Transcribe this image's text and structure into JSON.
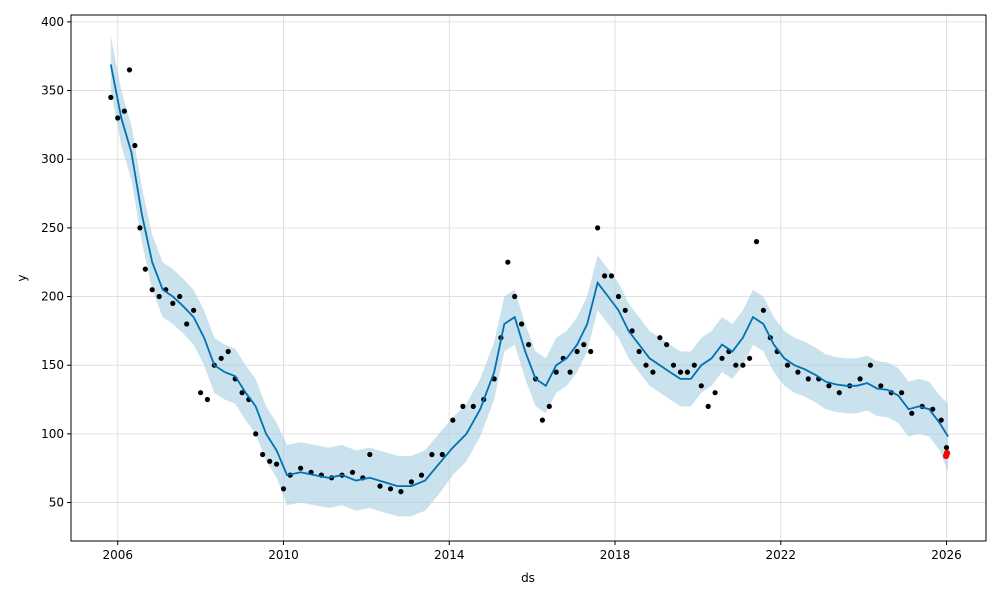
{
  "chart_data": {
    "type": "line",
    "xlabel": "ds",
    "ylabel": "y",
    "x_axis": {
      "type": "date",
      "range": [
        "2004-11-15",
        "2026-12-15"
      ],
      "tick_labels": [
        "2006",
        "2010",
        "2014",
        "2018",
        "2022",
        "2026"
      ]
    },
    "y_axis": {
      "range": [
        22,
        405
      ],
      "tick_labels": [
        "50",
        "100",
        "150",
        "200",
        "250",
        "300",
        "350",
        "400"
      ]
    },
    "grid": true,
    "colors": {
      "forecast": "#0072B2",
      "interval": "#A6CEE3",
      "observed": "#000000",
      "highlight": "#FF0000",
      "grid": "#E0E0E0"
    },
    "series": [
      {
        "role": "forecast",
        "x": [
          "2005-11-01",
          "2006-02-01",
          "2006-05-01",
          "2006-08-01",
          "2006-11-01",
          "2007-02-01",
          "2007-05-01",
          "2007-08-01",
          "2007-11-01",
          "2008-02-01",
          "2008-05-01",
          "2008-08-01",
          "2008-11-01",
          "2009-02-01",
          "2009-05-01",
          "2009-08-01",
          "2009-11-01",
          "2010-02-01",
          "2010-06-01",
          "2010-10-01",
          "2011-02-01",
          "2011-06-01",
          "2011-10-01",
          "2012-02-01",
          "2012-06-01",
          "2012-10-01",
          "2013-02-01",
          "2013-06-01",
          "2013-10-01",
          "2014-02-01",
          "2014-06-01",
          "2014-10-01",
          "2015-02-01",
          "2015-05-01",
          "2015-08-01",
          "2015-11-01",
          "2016-02-01",
          "2016-05-01",
          "2016-08-01",
          "2016-11-01",
          "2017-02-01",
          "2017-05-01",
          "2017-08-01",
          "2017-11-01",
          "2018-02-01",
          "2018-05-01",
          "2018-08-01",
          "2018-11-01",
          "2019-02-01",
          "2019-05-01",
          "2019-08-01",
          "2019-11-01",
          "2020-02-01",
          "2020-05-01",
          "2020-08-01",
          "2020-11-01",
          "2021-02-01",
          "2021-05-01",
          "2021-08-01",
          "2021-11-01",
          "2022-02-01",
          "2022-05-01",
          "2022-08-01",
          "2022-11-01",
          "2023-02-01",
          "2023-05-01",
          "2023-08-01",
          "2023-11-01",
          "2024-02-01",
          "2024-05-01",
          "2024-08-01",
          "2024-11-01",
          "2025-02-01",
          "2025-05-01",
          "2025-08-01",
          "2025-11-01",
          "2026-01-15"
        ],
        "y": [
          369,
          330,
          305,
          260,
          225,
          205,
          200,
          193,
          185,
          170,
          150,
          145,
          142,
          130,
          120,
          100,
          88,
          70,
          72,
          70,
          68,
          70,
          66,
          68,
          65,
          62,
          62,
          66,
          78,
          90,
          100,
          118,
          145,
          180,
          185,
          160,
          140,
          135,
          150,
          155,
          165,
          180,
          210,
          200,
          190,
          175,
          165,
          155,
          150,
          145,
          140,
          140,
          150,
          155,
          165,
          160,
          170,
          185,
          180,
          165,
          155,
          150,
          147,
          143,
          138,
          136,
          135,
          135,
          137,
          133,
          132,
          128,
          118,
          120,
          118,
          108,
          98
        ],
        "lower": [
          350,
          310,
          285,
          240,
          205,
          185,
          180,
          173,
          165,
          150,
          130,
          125,
          122,
          110,
          100,
          80,
          68,
          48,
          50,
          48,
          46,
          48,
          44,
          46,
          43,
          40,
          40,
          44,
          56,
          70,
          80,
          98,
          125,
          160,
          165,
          140,
          120,
          115,
          130,
          135,
          145,
          160,
          190,
          180,
          170,
          155,
          145,
          135,
          130,
          125,
          120,
          120,
          130,
          135,
          145,
          140,
          150,
          165,
          160,
          145,
          135,
          130,
          127,
          123,
          118,
          116,
          115,
          115,
          117,
          113,
          112,
          108,
          98,
          100,
          98,
          88,
          72
        ],
        "upper": [
          390,
          350,
          325,
          280,
          245,
          225,
          220,
          213,
          205,
          190,
          170,
          165,
          162,
          150,
          140,
          120,
          108,
          92,
          94,
          92,
          90,
          92,
          88,
          90,
          87,
          84,
          84,
          88,
          100,
          112,
          122,
          140,
          167,
          200,
          205,
          180,
          160,
          155,
          170,
          175,
          185,
          200,
          230,
          220,
          210,
          195,
          185,
          175,
          170,
          165,
          160,
          160,
          170,
          175,
          185,
          180,
          190,
          205,
          200,
          185,
          175,
          170,
          167,
          163,
          158,
          156,
          155,
          155,
          157,
          153,
          152,
          148,
          138,
          140,
          138,
          128,
          122
        ]
      },
      {
        "role": "observed",
        "x": [
          "2005-11-01",
          "2006-01-01",
          "2006-03-01",
          "2006-04-15",
          "2006-06-01",
          "2006-07-15",
          "2006-09-01",
          "2006-11-01",
          "2007-01-01",
          "2007-03-01",
          "2007-05-01",
          "2007-07-01",
          "2007-09-01",
          "2007-11-01",
          "2008-01-01",
          "2008-03-01",
          "2008-05-01",
          "2008-07-01",
          "2008-09-01",
          "2008-11-01",
          "2009-01-01",
          "2009-03-01",
          "2009-05-01",
          "2009-07-01",
          "2009-09-01",
          "2009-11-01",
          "2010-01-01",
          "2010-03-01",
          "2010-06-01",
          "2010-09-01",
          "2010-12-01",
          "2011-03-01",
          "2011-06-01",
          "2011-09-01",
          "2011-12-01",
          "2012-02-01",
          "2012-05-01",
          "2012-08-01",
          "2012-11-01",
          "2013-02-01",
          "2013-05-01",
          "2013-08-01",
          "2013-11-01",
          "2014-02-01",
          "2014-05-01",
          "2014-08-01",
          "2014-11-01",
          "2015-02-01",
          "2015-04-01",
          "2015-06-01",
          "2015-08-01",
          "2015-10-01",
          "2015-12-01",
          "2016-02-01",
          "2016-04-01",
          "2016-06-01",
          "2016-08-01",
          "2016-10-01",
          "2016-12-01",
          "2017-02-01",
          "2017-04-01",
          "2017-06-01",
          "2017-08-01",
          "2017-10-01",
          "2017-12-01",
          "2018-02-01",
          "2018-04-01",
          "2018-06-01",
          "2018-08-01",
          "2018-10-01",
          "2018-12-01",
          "2019-02-01",
          "2019-04-01",
          "2019-06-01",
          "2019-08-01",
          "2019-10-01",
          "2019-12-01",
          "2020-02-01",
          "2020-04-01",
          "2020-06-01",
          "2020-08-01",
          "2020-10-01",
          "2020-12-01",
          "2021-02-01",
          "2021-04-01",
          "2021-06-01",
          "2021-08-01",
          "2021-10-01",
          "2021-12-01",
          "2022-03-01",
          "2022-06-01",
          "2022-09-01",
          "2022-12-01",
          "2023-03-01",
          "2023-06-01",
          "2023-09-01",
          "2023-12-01",
          "2024-03-01",
          "2024-06-01",
          "2024-09-01",
          "2024-12-01",
          "2025-03-01",
          "2025-06-01",
          "2025-09-01",
          "2025-11-15",
          "2026-01-01"
        ],
        "y": [
          345,
          330,
          335,
          365,
          310,
          250,
          220,
          205,
          200,
          205,
          195,
          200,
          180,
          190,
          130,
          125,
          150,
          155,
          160,
          140,
          130,
          125,
          100,
          85,
          80,
          78,
          60,
          70,
          75,
          72,
          70,
          68,
          70,
          72,
          68,
          85,
          62,
          60,
          58,
          65,
          70,
          85,
          85,
          110,
          120,
          120,
          125,
          140,
          170,
          225,
          200,
          180,
          165,
          140,
          110,
          120,
          145,
          155,
          145,
          160,
          165,
          160,
          250,
          215,
          215,
          200,
          190,
          175,
          160,
          150,
          145,
          170,
          165,
          150,
          145,
          145,
          150,
          135,
          120,
          130,
          155,
          160,
          150,
          150,
          155,
          240,
          190,
          170,
          160,
          150,
          145,
          140,
          140,
          135,
          130,
          135,
          140,
          150,
          135,
          130,
          130,
          115,
          120,
          118,
          110,
          90
        ]
      },
      {
        "role": "highlight",
        "x": [
          "2025-12-28",
          "2026-01-05"
        ],
        "y": [
          84,
          86
        ]
      }
    ]
  }
}
